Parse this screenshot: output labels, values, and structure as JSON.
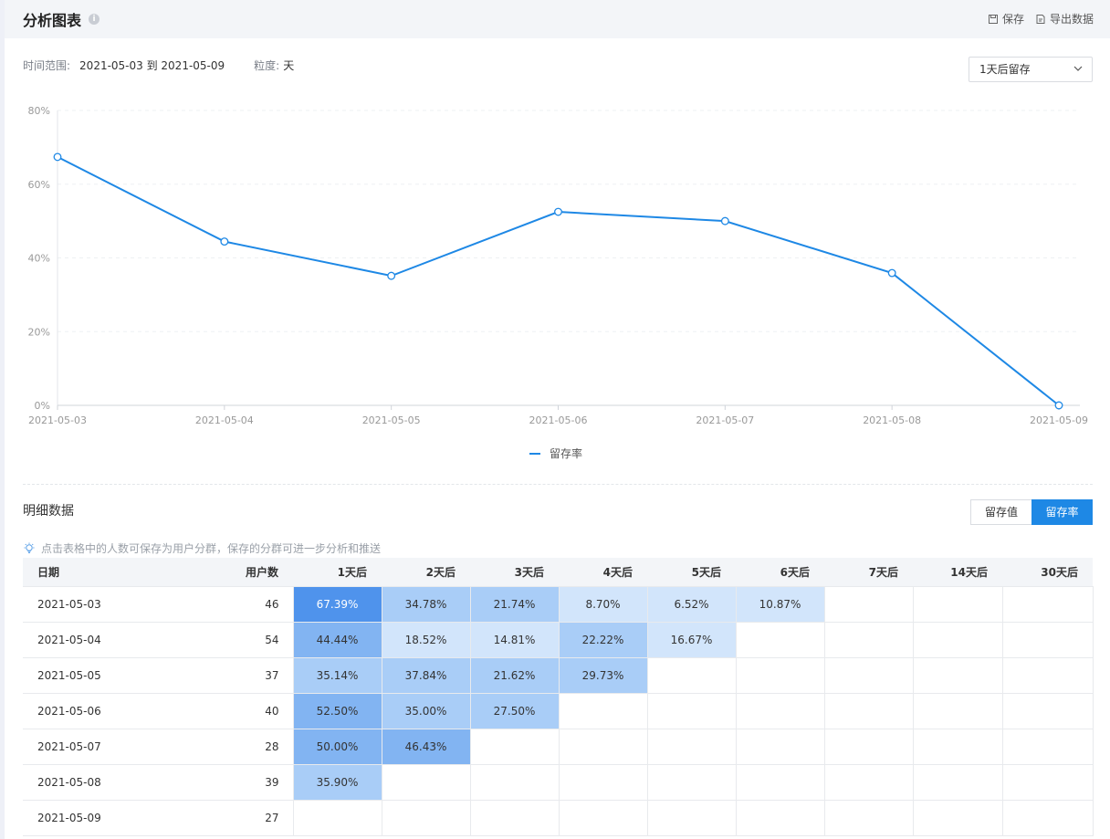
{
  "header": {
    "title": "分析图表",
    "info_icon": "i",
    "save_label": "保存",
    "export_label": "导出数据"
  },
  "filters": {
    "range_label": "时间范围:",
    "range_value": "2021-05-03 到 2021-05-09",
    "granularity_label": "粒度:",
    "granularity_value": "天",
    "retention_select": "1天后留存"
  },
  "chart_data": {
    "type": "line",
    "title": "",
    "categories": [
      "2021-05-03",
      "2021-05-04",
      "2021-05-05",
      "2021-05-06",
      "2021-05-07",
      "2021-05-08",
      "2021-05-09"
    ],
    "series": [
      {
        "name": "留存率",
        "values": [
          67.39,
          44.44,
          35.14,
          52.5,
          50.0,
          35.9,
          0
        ]
      }
    ],
    "yticks": [
      "0%",
      "20%",
      "40%",
      "60%",
      "80%"
    ],
    "ylim": [
      0,
      80
    ],
    "legend": "bottom-center",
    "grid": true,
    "color": "#1e88e5"
  },
  "detail": {
    "title": "明细数据",
    "toggle": [
      "留存值",
      "留存率"
    ],
    "active_toggle": "留存率",
    "hint": "点击表格中的人数可保存为用户分群，保存的分群可进一步分析和推送",
    "columns": [
      "日期",
      "用户数",
      "1天后",
      "2天后",
      "3天后",
      "4天后",
      "5天后",
      "6天后",
      "7天后",
      "14天后",
      "30天后"
    ],
    "rows": [
      {
        "date": "2021-05-03",
        "users": "46",
        "cells": [
          "67.39%",
          "34.78%",
          "21.74%",
          "8.70%",
          "6.52%",
          "10.87%",
          "",
          "",
          ""
        ]
      },
      {
        "date": "2021-05-04",
        "users": "54",
        "cells": [
          "44.44%",
          "18.52%",
          "14.81%",
          "22.22%",
          "16.67%",
          "",
          "",
          "",
          ""
        ]
      },
      {
        "date": "2021-05-05",
        "users": "37",
        "cells": [
          "35.14%",
          "37.84%",
          "21.62%",
          "29.73%",
          "",
          "",
          "",
          "",
          ""
        ]
      },
      {
        "date": "2021-05-06",
        "users": "40",
        "cells": [
          "52.50%",
          "35.00%",
          "27.50%",
          "",
          "",
          "",
          "",
          "",
          ""
        ]
      },
      {
        "date": "2021-05-07",
        "users": "28",
        "cells": [
          "50.00%",
          "46.43%",
          "",
          "",
          "",
          "",
          "",
          "",
          ""
        ]
      },
      {
        "date": "2021-05-08",
        "users": "39",
        "cells": [
          "35.90%",
          "",
          "",
          "",
          "",
          "",
          "",
          "",
          ""
        ]
      },
      {
        "date": "2021-05-09",
        "users": "27",
        "cells": [
          "",
          "",
          "",
          "",
          "",
          "",
          "",
          "",
          ""
        ]
      }
    ]
  }
}
